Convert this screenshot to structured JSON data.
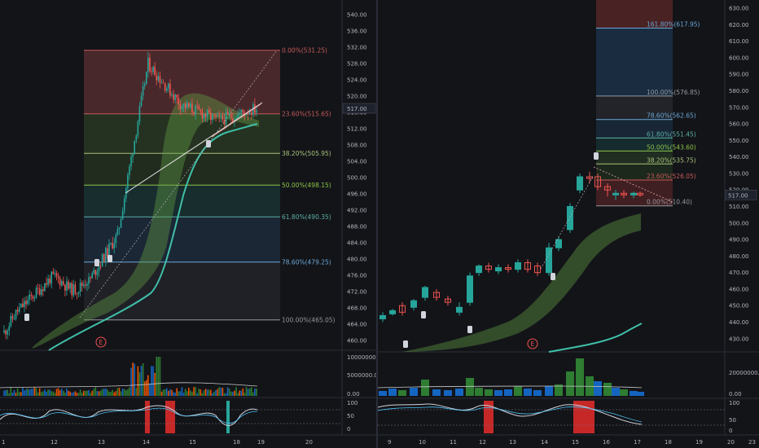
{
  "colors": {
    "bg": "#131418",
    "up": "#26a69a",
    "down": "#ef5350",
    "ema": "#3fbfa9",
    "fib0": "#c65a5a",
    "fib236": "#c65a5a",
    "fib382": "#a8c27a",
    "fib50": "#8bc34a",
    "fib618": "#5bb0a3",
    "fib786": "#6aa7d8",
    "fib100": "#9598a1",
    "fib1618": "#6aa7d8"
  },
  "left_chart": {
    "price_axis": [
      "540.00",
      "536.00",
      "532.00",
      "528.00",
      "524.00",
      "520.00",
      "516.00",
      "512.00",
      "508.00",
      "504.00",
      "500.00",
      "496.00",
      "492.00",
      "488.00",
      "484.00",
      "480.00",
      "476.00",
      "472.00",
      "468.00",
      "464.00",
      "460.00"
    ],
    "price_range": [
      458,
      542
    ],
    "current_price": "517.00",
    "time_axis": [
      "1",
      "12",
      "13",
      "14",
      "15",
      "18",
      "19",
      "20"
    ],
    "fib_labels": [
      "0.00%(531.25)",
      "23.60%(515.65)",
      "38.20%(505.95)",
      "50.00%(498.15)",
      "61.80%(490.35)",
      "78.60%(479.25)",
      "100.00%(465.05)"
    ],
    "fib_levels": [
      531.25,
      515.65,
      505.95,
      498.15,
      490.35,
      479.25,
      465.05
    ],
    "event_marker": "E",
    "volume_axis": [
      "10000000.00",
      "5000000.00",
      "0.00"
    ],
    "osc_axis": [
      "100",
      "50",
      "0"
    ]
  },
  "right_chart": {
    "price_axis": [
      "630.00",
      "620.00",
      "610.00",
      "600.00",
      "590.00",
      "580.00",
      "570.00",
      "560.00",
      "550.00",
      "540.00",
      "530.00",
      "520.00",
      "510.00",
      "500.00",
      "490.00",
      "480.00",
      "470.00",
      "460.00",
      "450.00",
      "440.00",
      "430.00"
    ],
    "price_range": [
      423,
      633
    ],
    "current_price": "517.00",
    "time_axis": [
      "9",
      "10",
      "11",
      "12",
      "13",
      "14",
      "15",
      "16",
      "17",
      "18",
      "19",
      "20",
      "23"
    ],
    "fib_labels": [
      "161.80%(617.95)",
      "100.00%(576.85)",
      "78.60%(562.65)",
      "61.80%(551.45)",
      "50.00%(543.60)",
      "38.20%(535.75)",
      "23.60%(526.05)",
      "0.00%(510.40)"
    ],
    "fib_levels": [
      617.95,
      576.85,
      562.65,
      551.45,
      543.6,
      535.75,
      526.05,
      510.4
    ],
    "event_marker": "E",
    "volume_axis": [
      "20000000.00",
      "0.00"
    ],
    "osc_axis": [
      "100",
      "50",
      "0"
    ]
  }
}
